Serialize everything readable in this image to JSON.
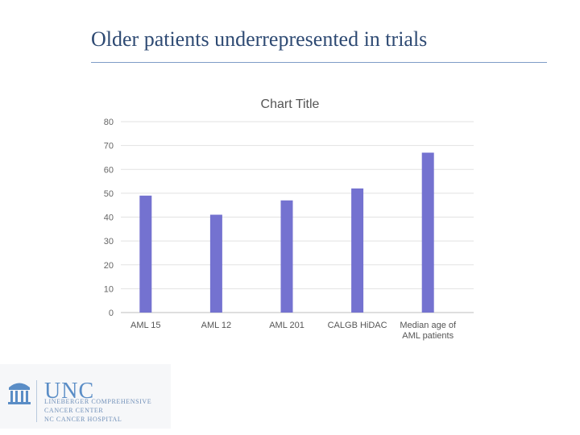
{
  "slide": {
    "title": "Older patients underrepresented in trials"
  },
  "chart_data": {
    "type": "bar",
    "title": "Chart Title",
    "categories": [
      "AML 15",
      "AML 12",
      "AML 201",
      "CALGB HiDAC",
      "Median age of AML patients"
    ],
    "values": [
      49,
      41,
      47,
      52,
      67
    ],
    "ylim": [
      0,
      80
    ],
    "yticks": [
      0,
      10,
      20,
      30,
      40,
      50,
      60,
      70,
      80
    ],
    "grid": true,
    "legend": "none",
    "bar_color": "#7472d0"
  },
  "logo": {
    "name": "UNC",
    "line1": "LINEBERGER COMPREHENSIVE",
    "line2": "CANCER CENTER",
    "line3": "NC CANCER HOSPITAL",
    "icon": "old-well-icon"
  }
}
